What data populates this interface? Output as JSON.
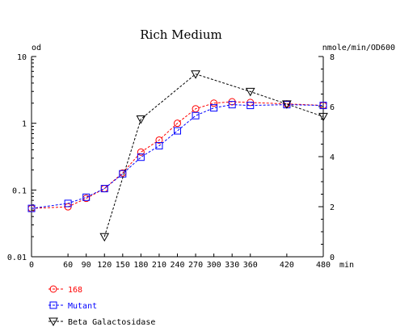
{
  "chart_data": {
    "type": "line",
    "title": "Rich Medium",
    "x_unit_label": "min",
    "y_left_label": "od",
    "y_right_label": "nmole/min/OD600",
    "x_ticks": [
      0,
      60,
      90,
      120,
      150,
      180,
      210,
      240,
      270,
      300,
      330,
      360,
      420,
      480
    ],
    "xlim": [
      0,
      480
    ],
    "y_left_scale": "log",
    "y_left_ticks": [
      {
        "value": 0.01,
        "label": "0.01"
      },
      {
        "value": 0.1,
        "label": "0.1"
      },
      {
        "value": 1,
        "label": "1"
      },
      {
        "value": 10,
        "label": "10"
      }
    ],
    "y_left_lim": [
      0.01,
      10
    ],
    "y_right_ticks": [
      0,
      2,
      4,
      6,
      8
    ],
    "y_right_lim": [
      0,
      8
    ],
    "grid": false,
    "legend_placement": "bottom-left",
    "series": [
      {
        "name": "168",
        "axis": "left",
        "color": "#ff0000",
        "marker": "circle",
        "x": [
          0,
          60,
          90,
          120,
          150,
          180,
          210,
          240,
          270,
          300,
          330,
          360,
          420,
          480
        ],
        "y": [
          0.053,
          0.056,
          0.075,
          0.105,
          0.18,
          0.37,
          0.56,
          1.0,
          1.65,
          2.0,
          2.1,
          2.05,
          1.95,
          1.85
        ]
      },
      {
        "name": "Mutant",
        "axis": "left",
        "color": "#0000ff",
        "marker": "square",
        "x": [
          0,
          60,
          90,
          120,
          150,
          180,
          210,
          240,
          270,
          300,
          330,
          360,
          420,
          480
        ],
        "y": [
          0.053,
          0.063,
          0.078,
          0.105,
          0.175,
          0.31,
          0.46,
          0.77,
          1.3,
          1.7,
          1.9,
          1.85,
          1.9,
          1.85
        ]
      },
      {
        "name": "Beta Galactosidase",
        "axis": "right",
        "color": "#000000",
        "marker": "triangle-down",
        "x": [
          120,
          180,
          270,
          360,
          420,
          480
        ],
        "y": [
          0.8,
          5.5,
          7.3,
          6.6,
          6.1,
          5.6
        ]
      }
    ]
  }
}
